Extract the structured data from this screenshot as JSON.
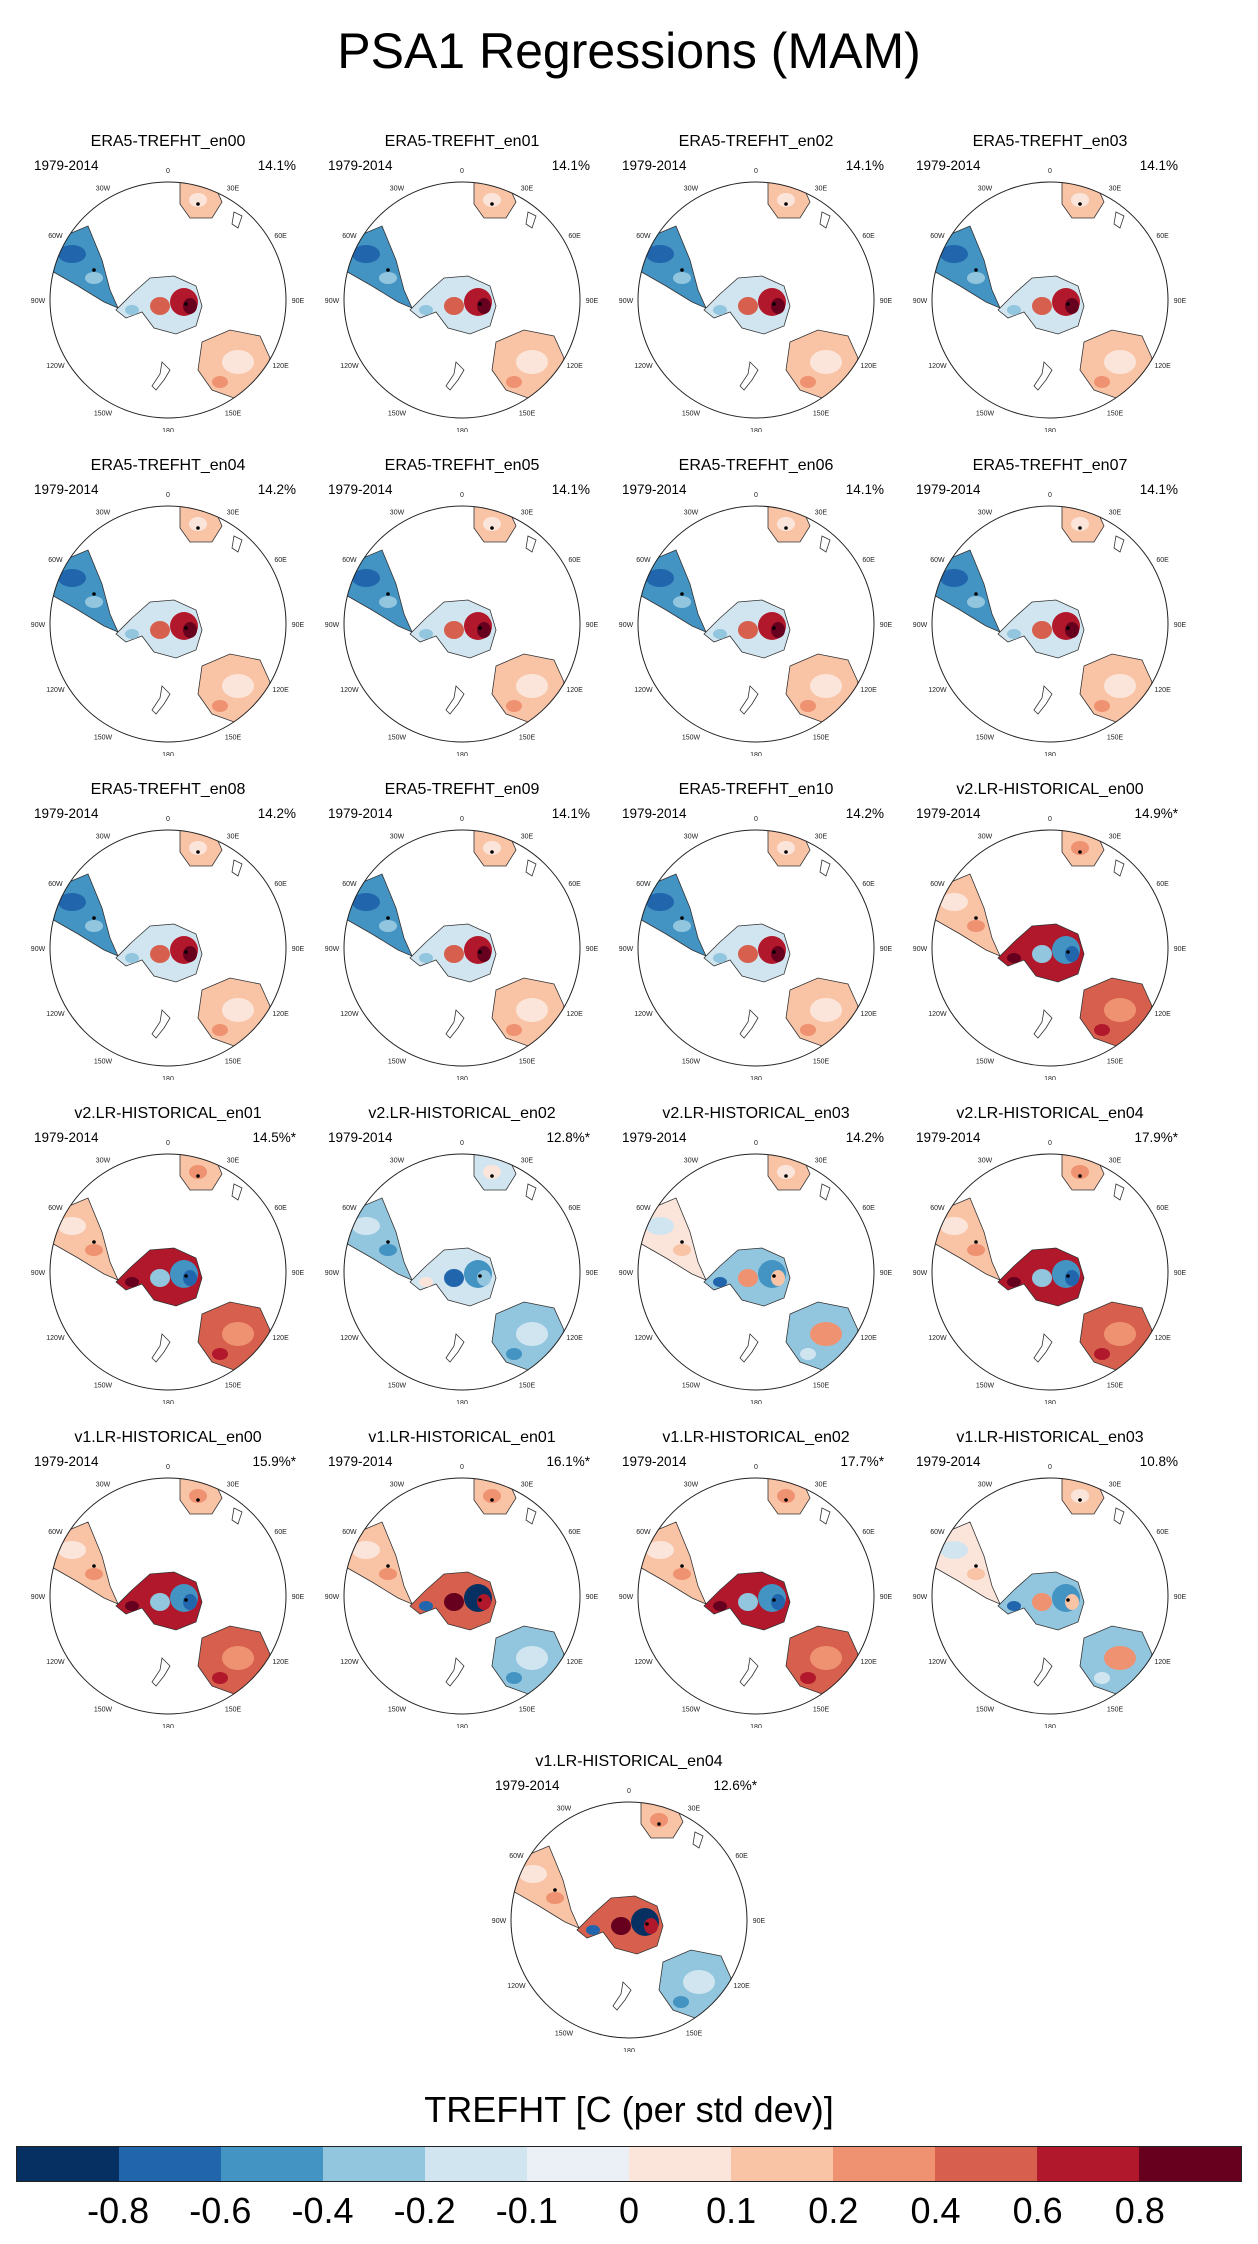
{
  "title": "PSA1 Regressions (MAM)",
  "colorbar": {
    "label": "TREFHT [C (per std dev)]",
    "colors": [
      "#053061",
      "#2166ac",
      "#4393c3",
      "#92c5de",
      "#d1e5f0",
      "#eaf0f5",
      "#fbe5da",
      "#f9c3a6",
      "#ef9271",
      "#d6604d",
      "#b2182b",
      "#67001f"
    ],
    "tick_labels": [
      "-0.8",
      "-0.6",
      "-0.4",
      "-0.2",
      "-0.1",
      "0",
      "0.1",
      "0.2",
      "0.4",
      "0.6",
      "0.8"
    ]
  },
  "map_labels": {
    "lon_labels": [
      "0",
      "30E",
      "60E",
      "90E",
      "120E",
      "150E",
      "180",
      "150W",
      "120W",
      "90W",
      "60W",
      "30W"
    ]
  },
  "chart_data": {
    "type": "map",
    "title": "PSA1 Regressions (MAM)",
    "variable": "TREFHT",
    "units": "C (per std dev)",
    "projection": "south polar stereographic",
    "panels": [
      {
        "name": "ERA5-TREFHT_en00",
        "period": "1979-2014",
        "pct": "14.1%",
        "pattern": "era"
      },
      {
        "name": "ERA5-TREFHT_en01",
        "period": "1979-2014",
        "pct": "14.1%",
        "pattern": "era"
      },
      {
        "name": "ERA5-TREFHT_en02",
        "period": "1979-2014",
        "pct": "14.1%",
        "pattern": "era"
      },
      {
        "name": "ERA5-TREFHT_en03",
        "period": "1979-2014",
        "pct": "14.1%",
        "pattern": "era"
      },
      {
        "name": "ERA5-TREFHT_en04",
        "period": "1979-2014",
        "pct": "14.2%",
        "pattern": "era"
      },
      {
        "name": "ERA5-TREFHT_en05",
        "period": "1979-2014",
        "pct": "14.1%",
        "pattern": "era"
      },
      {
        "name": "ERA5-TREFHT_en06",
        "period": "1979-2014",
        "pct": "14.1%",
        "pattern": "era"
      },
      {
        "name": "ERA5-TREFHT_en07",
        "period": "1979-2014",
        "pct": "14.1%",
        "pattern": "era"
      },
      {
        "name": "ERA5-TREFHT_en08",
        "period": "1979-2014",
        "pct": "14.2%",
        "pattern": "era"
      },
      {
        "name": "ERA5-TREFHT_en09",
        "period": "1979-2014",
        "pct": "14.1%",
        "pattern": "era"
      },
      {
        "name": "ERA5-TREFHT_en10",
        "period": "1979-2014",
        "pct": "14.2%",
        "pattern": "era"
      },
      {
        "name": "v2.LR-HISTORICAL_en00",
        "period": "1979-2014",
        "pct": "14.9%*",
        "pattern": "warm-west"
      },
      {
        "name": "v2.LR-HISTORICAL_en01",
        "period": "1979-2014",
        "pct": "14.5%*",
        "pattern": "warm-west"
      },
      {
        "name": "v2.LR-HISTORICAL_en02",
        "period": "1979-2014",
        "pct": "12.8%*",
        "pattern": "cool"
      },
      {
        "name": "v2.LR-HISTORICAL_en03",
        "period": "1979-2014",
        "pct": "14.2%",
        "pattern": "mixed"
      },
      {
        "name": "v2.LR-HISTORICAL_en04",
        "period": "1979-2014",
        "pct": "17.9%*",
        "pattern": "warm-west"
      },
      {
        "name": "v1.LR-HISTORICAL_en00",
        "period": "1979-2014",
        "pct": "15.9%*",
        "pattern": "warm-west"
      },
      {
        "name": "v1.LR-HISTORICAL_en01",
        "period": "1979-2014",
        "pct": "16.1%*",
        "pattern": "dipole"
      },
      {
        "name": "v1.LR-HISTORICAL_en02",
        "period": "1979-2014",
        "pct": "17.7%*",
        "pattern": "warm-west"
      },
      {
        "name": "v1.LR-HISTORICAL_en03",
        "period": "1979-2014",
        "pct": "10.8%",
        "pattern": "mixed"
      },
      {
        "name": "v1.LR-HISTORICAL_en04",
        "period": "1979-2014",
        "pct": "12.6%*",
        "pattern": "dipole"
      }
    ],
    "colorbar_levels": [
      -0.8,
      -0.6,
      -0.4,
      -0.2,
      -0.1,
      0,
      0.1,
      0.2,
      0.4,
      0.6,
      0.8
    ]
  }
}
